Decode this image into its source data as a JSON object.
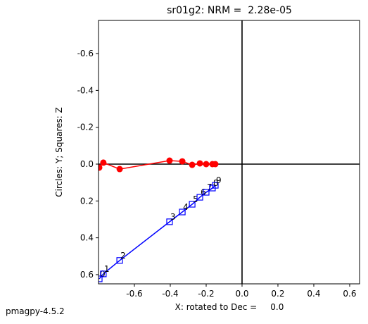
{
  "chart_data": {
    "type": "zijderveld",
    "title": "sr01g2: NRM =  2.28e-05",
    "x_label": "X: rotated to Dec =     0.0",
    "y_label": "Circles: Y; Squares: Z",
    "footer": "pmagpy-4.5.2",
    "x": [
      -0.796,
      -0.773,
      -0.682,
      -0.404,
      -0.333,
      -0.278,
      -0.235,
      -0.2,
      -0.165,
      -0.149
    ],
    "point_labels": [
      "0",
      "1",
      "2",
      "3",
      "4",
      "5",
      "6",
      "7",
      "8",
      "9"
    ],
    "series": [
      {
        "name": "Y",
        "marker": "circle",
        "color": "#ff0000",
        "values": [
          0.019,
          -0.008,
          0.027,
          -0.019,
          -0.015,
          0.004,
          -0.004,
          0,
          0,
          0
        ]
      },
      {
        "name": "Z",
        "marker": "square",
        "color": "#0000ff",
        "values": [
          0.623,
          0.596,
          0.523,
          0.313,
          0.26,
          0.218,
          0.18,
          0.153,
          0.13,
          0.115
        ]
      }
    ],
    "xlim": [
      -0.8,
      0.655
    ],
    "ylim": [
      0.65,
      -0.78
    ],
    "xticks": [
      -0.6,
      -0.4,
      -0.2,
      {
        "value": 0,
        "label": "0.0"
      },
      0.2,
      0.4,
      0.6
    ],
    "yticks": [
      -0.6,
      -0.4,
      -0.2,
      {
        "value": 0,
        "label": "0.0"
      },
      0.2,
      0.4,
      0.6
    ]
  }
}
